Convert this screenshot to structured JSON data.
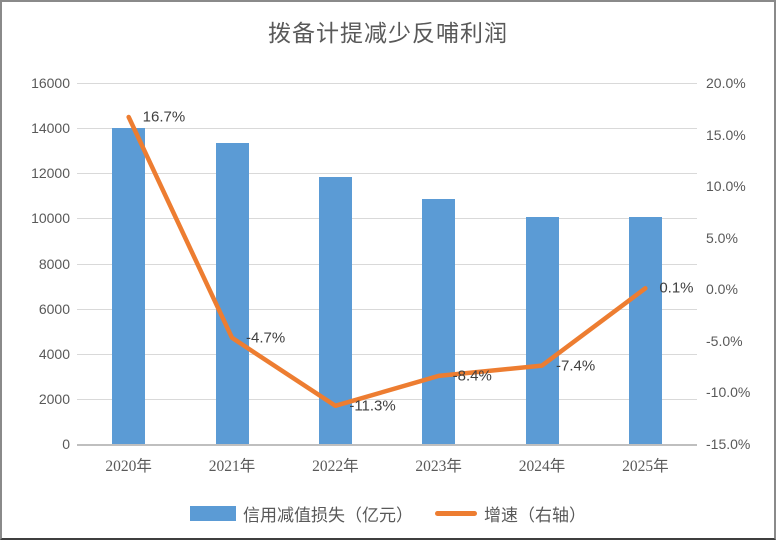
{
  "chart_data": {
    "type": "combo_bar_line",
    "title": "拨备计提减少反哺利润",
    "categories": [
      "2020年",
      "2021年",
      "2022年",
      "2023年",
      "2024年",
      "2025年"
    ],
    "series": [
      {
        "name": "信用减值损失（亿元）",
        "type": "bar",
        "axis": "left",
        "color": "#5B9BD5",
        "values": [
          14000,
          13340,
          11830,
          10840,
          10040,
          10050
        ]
      },
      {
        "name": "增速（右轴）",
        "type": "line",
        "axis": "right",
        "color": "#ED7D31",
        "values": [
          16.7,
          -4.7,
          -11.3,
          -8.4,
          -7.4,
          0.1
        ],
        "point_labels": [
          "16.7%",
          "-4.7%",
          "-11.3%",
          "-8.4%",
          "-7.4%",
          "0.1%"
        ]
      }
    ],
    "left_axis": {
      "min": 0,
      "max": 16000,
      "tick_labels": [
        "16000",
        "14000",
        "12000",
        "10000",
        "8000",
        "6000",
        "4000",
        "2000",
        "0"
      ]
    },
    "right_axis": {
      "min": -15,
      "max": 20,
      "tick_labels": [
        "20.0%",
        "15.0%",
        "10.0%",
        "5.0%",
        "0.0%",
        "-5.0%",
        "-10.0%",
        "-15.0%"
      ]
    },
    "grid": true,
    "legend_position": "bottom",
    "colors": {
      "grid": "#D9D9D9",
      "baseline": "#BFBFBF",
      "axis_text": "#595959",
      "data_label_text": "#404040"
    }
  }
}
